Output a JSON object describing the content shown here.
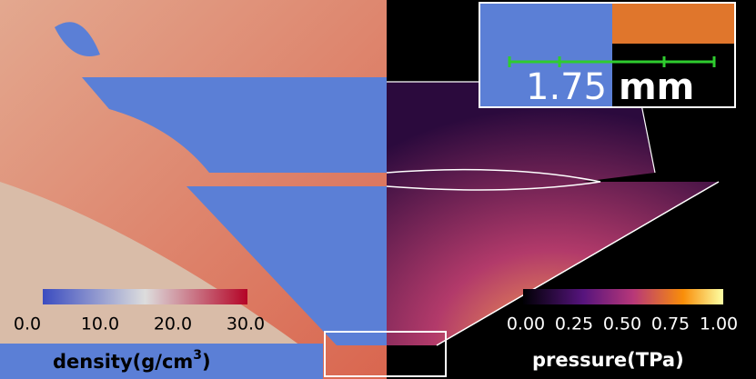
{
  "density_colorbar": {
    "ticks": [
      "0.0",
      "10.0",
      "20.0",
      "30.0"
    ],
    "label_prefix": "density(g/cm",
    "label_superscript": "3",
    "label_suffix": ")"
  },
  "pressure_colorbar": {
    "ticks": [
      "0.00",
      "0.25",
      "0.50",
      "0.75",
      "1.00"
    ],
    "label": "pressure(TPa)"
  },
  "inset": {
    "scale_value": "1.75",
    "scale_unit": "mm"
  }
}
